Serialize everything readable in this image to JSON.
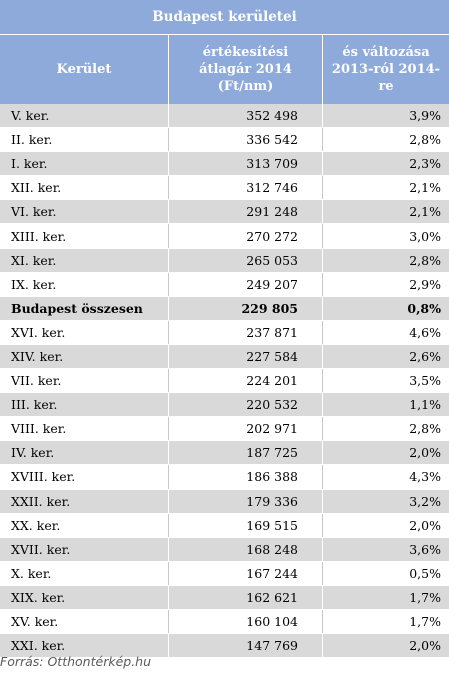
{
  "table": {
    "title": "Budapest kerületei",
    "headers": [
      "Kerület",
      "értékesítési átlagár 2014 (Ft/nm)",
      "és változása 2013-ról 2014-re"
    ],
    "rows": [
      {
        "district": "V. ker.",
        "price": "352 498",
        "change": "3,9%"
      },
      {
        "district": "II. ker.",
        "price": "336 542",
        "change": "2,8%"
      },
      {
        "district": "I. ker.",
        "price": "313 709",
        "change": "2,3%"
      },
      {
        "district": "XII. ker.",
        "price": "312 746",
        "change": "2,1%"
      },
      {
        "district": "VI. ker.",
        "price": "291 248",
        "change": "2,1%"
      },
      {
        "district": "XIII. ker.",
        "price": "270 272",
        "change": "3,0%"
      },
      {
        "district": "XI. ker.",
        "price": "265 053",
        "change": "2,8%"
      },
      {
        "district": "IX. ker.",
        "price": "249 207",
        "change": "2,9%"
      },
      {
        "district": "Budapest összesen",
        "price": "229 805",
        "change": "0,8%",
        "bold": true
      },
      {
        "district": "XVI. ker.",
        "price": "237 871",
        "change": "4,6%"
      },
      {
        "district": "XIV. ker.",
        "price": "227 584",
        "change": "2,6%"
      },
      {
        "district": "VII. ker.",
        "price": "224 201",
        "change": "3,5%"
      },
      {
        "district": "III. ker.",
        "price": "220 532",
        "change": "1,1%"
      },
      {
        "district": "VIII. ker.",
        "price": "202 971",
        "change": "2,8%"
      },
      {
        "district": "IV. ker.",
        "price": "187 725",
        "change": "2,0%"
      },
      {
        "district": "XVIII. ker.",
        "price": "186 388",
        "change": "4,3%"
      },
      {
        "district": "XXII. ker.",
        "price": "179 336",
        "change": "3,2%"
      },
      {
        "district": "XX. ker.",
        "price": "169 515",
        "change": "2,0%"
      },
      {
        "district": "XVII. ker.",
        "price": "168 248",
        "change": "3,6%"
      },
      {
        "district": "X. ker.",
        "price": "167 244",
        "change": "0,5%"
      },
      {
        "district": "XIX. ker.",
        "price": "162 621",
        "change": "1,7%"
      },
      {
        "district": "XV. ker.",
        "price": "160 104",
        "change": "1,7%"
      },
      {
        "district": "XXI. ker.",
        "price": "147 769",
        "change": "2,0%"
      }
    ]
  },
  "source": "Forrás: Otthontérkép.hu",
  "colors": {
    "header_bg": "#8eaadb",
    "stripe": "#d9d9d9"
  }
}
